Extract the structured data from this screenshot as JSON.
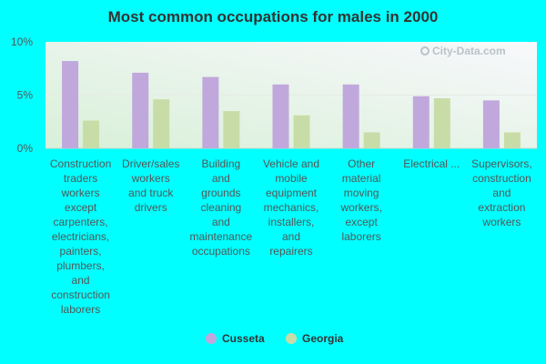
{
  "chart_data": {
    "type": "bar",
    "title": "Most common occupations for males in 2000",
    "categories": [
      [
        "Construction",
        "traders",
        "workers",
        "except",
        "carpenters,",
        "electricians,",
        "painters,",
        "plumbers,",
        "and",
        "construction",
        "laborers"
      ],
      [
        "Driver/sales",
        "workers",
        "and truck",
        "drivers"
      ],
      [
        "Building",
        "and",
        "grounds",
        "cleaning",
        "and",
        "maintenance",
        "occupations"
      ],
      [
        "Vehicle and",
        "mobile",
        "equipment",
        "mechanics,",
        "installers,",
        "and",
        "repairers"
      ],
      [
        "Other",
        "material",
        "moving",
        "workers,",
        "except",
        "laborers"
      ],
      [
        "Electrical ..."
      ],
      [
        "Supervisors,",
        "construction",
        "and",
        "extraction",
        "workers"
      ]
    ],
    "series": [
      {
        "name": "Cusseta",
        "color": "#c0a8dc",
        "values": [
          8.2,
          7.1,
          6.7,
          6.0,
          6.0,
          4.9,
          4.5
        ]
      },
      {
        "name": "Georgia",
        "color": "#c8dca8",
        "values": [
          2.6,
          4.6,
          3.5,
          3.1,
          1.5,
          4.7,
          1.5
        ]
      }
    ],
    "yticks": [
      "0%",
      "5%",
      "10%"
    ],
    "ylim": [
      0,
      10
    ],
    "grid": true,
    "legend_position": "bottom-center"
  },
  "watermark": "City-Data.com"
}
